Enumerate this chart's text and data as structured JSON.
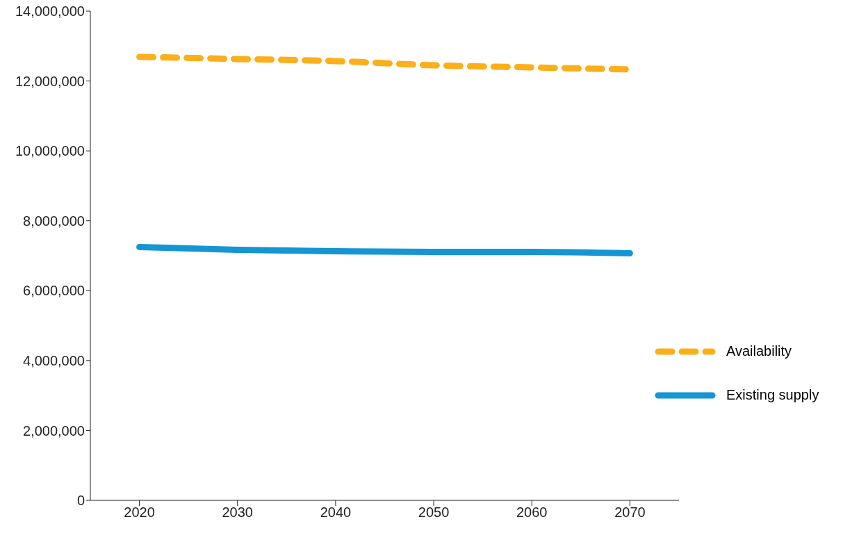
{
  "chart_data": {
    "type": "line",
    "x": [
      2020,
      2030,
      2040,
      2050,
      2060,
      2070
    ],
    "series": [
      {
        "name": "Availability",
        "color": "#fbaf1a",
        "line_style": "dashed",
        "values": [
          12690000,
          12630000,
          12570000,
          12450000,
          12390000,
          12330000
        ]
      },
      {
        "name": "Existing supply",
        "color": "#1595d3",
        "line_style": "solid",
        "values": [
          7250000,
          7170000,
          7130000,
          7110000,
          7110000,
          7070000
        ]
      }
    ],
    "xlim": [
      2015,
      2075
    ],
    "xticks": [
      2020,
      2030,
      2040,
      2050,
      2060,
      2070
    ],
    "ylim": [
      0,
      14000000
    ],
    "yticks": [
      0,
      {
        "value": 2000000,
        "label": "2,000,000"
      },
      {
        "value": 4000000,
        "label": "4,000,000"
      },
      {
        "value": 6000000,
        "label": "6,000,000"
      },
      {
        "value": 8000000,
        "label": "8,000,000"
      },
      {
        "value": 10000000,
        "label": "10,000,000"
      },
      {
        "value": 12000000,
        "label": "12,000,000"
      },
      {
        "value": 14000000,
        "label": "14,000,000"
      }
    ],
    "grid": false,
    "legend": "bottom right",
    "marker": "none"
  }
}
